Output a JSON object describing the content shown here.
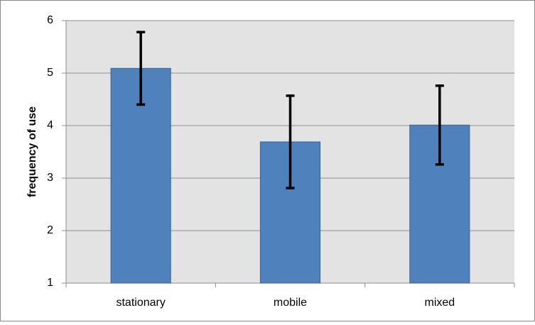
{
  "chart_data": {
    "type": "bar",
    "y_label": "frequency of use",
    "categories": [
      "stationary",
      "mobile",
      "mixed"
    ],
    "values": [
      5.09,
      3.69,
      4.01
    ],
    "errors": [
      0.69,
      0.88,
      0.75
    ],
    "color": "#4f81bd",
    "error_color": "#000000",
    "ylim": [
      1,
      6
    ],
    "yticks": [
      1,
      2,
      3,
      4,
      5,
      6
    ],
    "grid": true
  }
}
